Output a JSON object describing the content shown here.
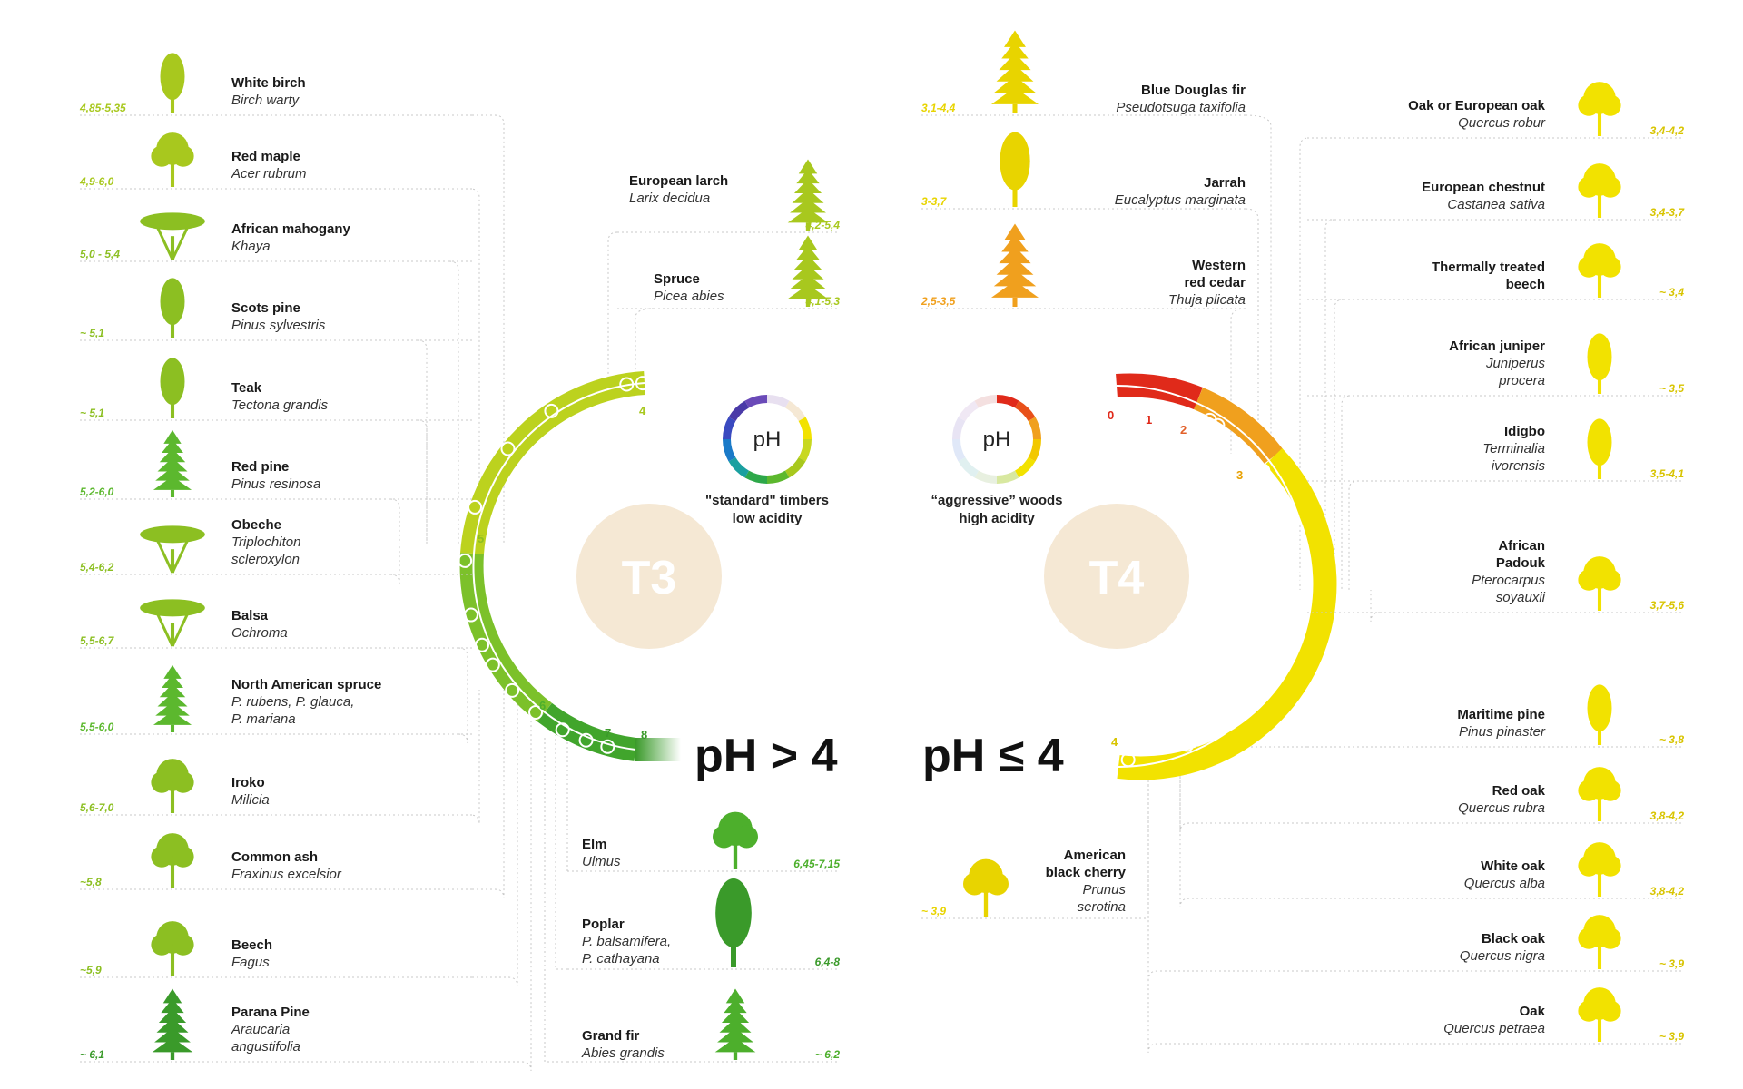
{
  "summary": {
    "left": {
      "heading": "pH > 4",
      "badge": "T3",
      "caption_line1": "\"standard\" timbers",
      "caption_line2": "low acidity",
      "ring_label": "pH",
      "ticks": [
        "4",
        "5",
        "6",
        "7",
        "8"
      ]
    },
    "right": {
      "heading": "pH ≤ 4",
      "badge": "T4",
      "caption_line1": "“aggressive” woods",
      "caption_line2": "high acidity",
      "ring_label": "pH",
      "ticks": [
        "0",
        "1",
        "2",
        "3",
        "4"
      ]
    }
  },
  "colors": {
    "lime": "#a8c81e",
    "green": "#5cb82e",
    "deep_green": "#3a9a2a",
    "yellow": "#f2e200",
    "orange": "#f0a01e",
    "red": "#e02a1a",
    "badge": "#f5e8d4"
  },
  "species": {
    "left": [
      {
        "name": "White birch",
        "latin": "Birch warty",
        "ph": "4,85-5,35",
        "icon": "birch-tree-icon"
      },
      {
        "name": "Red maple",
        "latin": "Acer rubrum",
        "ph": "4,9-6,0",
        "icon": "maple-tree-icon"
      },
      {
        "name": "African mahogany",
        "latin": "Khaya",
        "ph": "5,0 - 5,4",
        "icon": "mahogany-tree-icon"
      },
      {
        "name": "Scots pine",
        "latin": "Pinus sylvestris",
        "ph": "~ 5,1",
        "icon": "pine-tree-icon"
      },
      {
        "name": "Teak",
        "latin": "Tectona grandis",
        "ph": "~ 5,1",
        "icon": "teak-tree-icon"
      },
      {
        "name": "Red pine",
        "latin": "Pinus resinosa",
        "ph": "5,2-6,0",
        "icon": "conifer-tree-icon"
      },
      {
        "name": "Obeche",
        "latin": "Triplochiton scleroxylon",
        "ph": "5,4-6,2",
        "icon": "acacia-tree-icon"
      },
      {
        "name": "Balsa",
        "latin": "Ochroma",
        "ph": "5,5-6,7",
        "icon": "umbrella-tree-icon"
      },
      {
        "name": "North American spruce",
        "latin": "P. rubens, P. glauca, P. mariana",
        "ph": "5,5-6,0",
        "icon": "spruce-tree-icon"
      },
      {
        "name": "Iroko",
        "latin": "Milicia",
        "ph": "5,6-7,0",
        "icon": "round-tree-icon"
      },
      {
        "name": "Common ash",
        "latin": "Fraxinus excelsior",
        "ph": "~5,8",
        "icon": "ash-tree-icon"
      },
      {
        "name": "Beech",
        "latin": "Fagus",
        "ph": "~5,9",
        "icon": "beech-tree-icon"
      },
      {
        "name": "Parana Pine",
        "latin": "Araucaria angustifolia",
        "ph": "~ 6,1",
        "icon": "araucaria-tree-icon"
      }
    ],
    "center_left": [
      {
        "name": "European larch",
        "latin": "Larix decidua",
        "ph": "4,2-5,4",
        "icon": "larch-tree-icon"
      },
      {
        "name": "Spruce",
        "latin": "Picea abies",
        "ph": "4,1-5,3",
        "icon": "spruce-tree-icon"
      },
      {
        "name": "Elm",
        "latin": "Ulmus",
        "ph": "6,45-7,15",
        "icon": "elm-tree-icon"
      },
      {
        "name": "Poplar",
        "latin": "P. balsamifera, P. cathayana",
        "ph": "6,4-8",
        "icon": "poplar-tree-icon"
      },
      {
        "name": "Grand fir",
        "latin": "Abies grandis",
        "ph": "~ 6,2",
        "icon": "fir-tree-icon"
      }
    ],
    "center_right": [
      {
        "name": "Blue Douglas fir",
        "latin": "Pseudotsuga taxifolia",
        "ph": "3,1-4,4",
        "icon": "douglas-fir-icon"
      },
      {
        "name": "Jarrah",
        "latin": "Eucalyptus marginata",
        "ph": "3-3,7",
        "icon": "eucalyptus-tree-icon"
      },
      {
        "name": "Western red cedar",
        "latin": "Thuja plicata",
        "ph": "2,5-3,5",
        "icon": "cedar-tree-icon"
      },
      {
        "name": "American black cherry",
        "latin": "Prunus serotina",
        "ph": "~ 3,9",
        "icon": "cherry-tree-icon"
      }
    ],
    "right": [
      {
        "name": "Oak or European oak",
        "latin": "Quercus robur",
        "ph": "3,4-4,2",
        "icon": "oak-tree-icon"
      },
      {
        "name": "European chestnut",
        "latin": "Castanea sativa",
        "ph": "3,4-3,7",
        "icon": "chestnut-tree-icon"
      },
      {
        "name": "Thermally treated beech",
        "latin": "",
        "ph": "~ 3,4",
        "icon": "beech-tree-icon"
      },
      {
        "name": "African juniper",
        "latin": "Juniperus procera",
        "ph": "~ 3,5",
        "icon": "juniper-tree-icon"
      },
      {
        "name": "Idigbo",
        "latin": "Terminalia ivorensis",
        "ph": "3,5-4,1",
        "icon": "idigbo-tree-icon"
      },
      {
        "name": "African Padouk",
        "latin": "Pterocarpus soyauxii",
        "ph": "3,7-5,6",
        "icon": "padouk-tree-icon"
      },
      {
        "name": "Maritime pine",
        "latin": "Pinus pinaster",
        "ph": "~ 3,8",
        "icon": "pine-tree-icon"
      },
      {
        "name": "Red oak",
        "latin": "Quercus rubra",
        "ph": "3,8-4,2",
        "icon": "oak-tree-icon"
      },
      {
        "name": "White oak",
        "latin": "Quercus alba",
        "ph": "3,8-4,2",
        "icon": "oak-tree-icon"
      },
      {
        "name": "Black oak",
        "latin": "Quercus nigra",
        "ph": "~ 3,9",
        "icon": "oak-tree-icon"
      },
      {
        "name": "Oak",
        "latin": "Quercus petraea",
        "ph": "~ 3,9",
        "icon": "oak-tree-icon"
      }
    ]
  }
}
